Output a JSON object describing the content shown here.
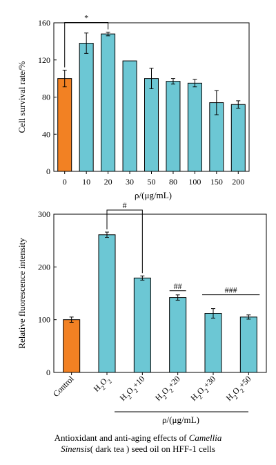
{
  "chart_data": [
    {
      "type": "bar",
      "categories": [
        "0",
        "10",
        "20",
        "30",
        "50",
        "80",
        "100",
        "150",
        "200"
      ],
      "values": [
        100,
        138,
        148,
        119,
        100,
        97,
        95,
        74,
        72
      ],
      "errors": [
        9,
        11,
        2,
        0,
        11,
        3,
        4,
        13,
        4
      ],
      "colors": [
        "#F28123",
        "#6CC7D4",
        "#6CC7D4",
        "#6CC7D4",
        "#6CC7D4",
        "#6CC7D4",
        "#6CC7D4",
        "#6CC7D4",
        "#6CC7D4"
      ],
      "ylabel": "Cell survival rate/%",
      "xlabel": "ρ/(μg/mL)",
      "ylim": [
        0,
        160
      ],
      "yticks": [
        0,
        40,
        80,
        120,
        160
      ],
      "annotations": [
        {
          "text": "*",
          "from": 0,
          "to": 2
        }
      ]
    },
    {
      "type": "bar",
      "categories": [
        "Control",
        "H2O2",
        "H2O2+10",
        "H2O2+20",
        "H2O2+30",
        "H2O2+50"
      ],
      "values": [
        100,
        261,
        179,
        142,
        112,
        105
      ],
      "errors": [
        5,
        5,
        4,
        5,
        9,
        4
      ],
      "colors": [
        "#F28123",
        "#6CC7D4",
        "#6CC7D4",
        "#6CC7D4",
        "#6CC7D4",
        "#6CC7D4"
      ],
      "ylabel": "Relative fluorescence intensity",
      "xlabel": "ρ/(μg/mL)",
      "ylim": [
        0,
        300
      ],
      "yticks": [
        0,
        100,
        200,
        300
      ],
      "annotations": [
        {
          "text": "#",
          "from": 1,
          "to": 2
        },
        {
          "text": "##",
          "over": 3
        },
        {
          "text": "###",
          "from": 4,
          "to": 5
        }
      ]
    }
  ],
  "caption": {
    "line1_prefix": "Antioxidant and anti-aging effects of ",
    "line1_italic": "Camellia",
    "line2_italic": "Sinensis",
    "line2_rest": "( dark tea ) seed oil on HFF-1 cells"
  }
}
